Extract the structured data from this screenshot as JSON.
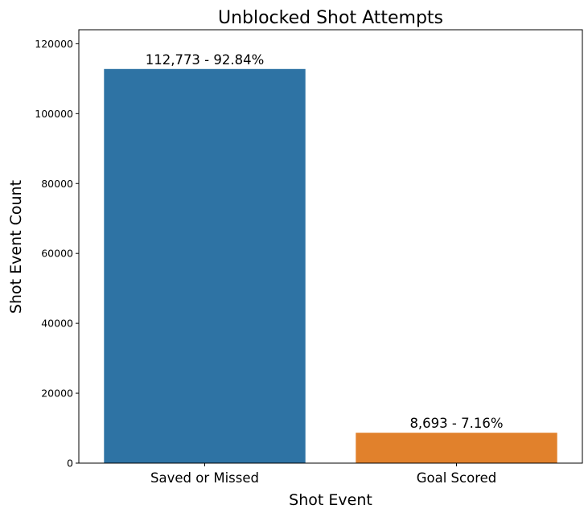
{
  "chart_data": {
    "type": "bar",
    "title": "Unblocked Shot Attempts",
    "xlabel": "Shot Event",
    "ylabel": "Shot Event Count",
    "categories": [
      "Saved or Missed",
      "Goal Scored"
    ],
    "values": [
      112773,
      8693
    ],
    "data_labels": [
      "112,773 - 92.84%",
      "8,693 - 7.16%"
    ],
    "colors": [
      "#2e73a4",
      "#e1812c"
    ],
    "ylim": [
      0,
      124000
    ],
    "yticks": [
      0,
      20000,
      40000,
      60000,
      80000,
      100000,
      120000
    ],
    "ytick_labels": [
      "0",
      "20000",
      "40000",
      "60000",
      "80000",
      "100000",
      "120000"
    ],
    "grid": false,
    "legend": "none"
  }
}
